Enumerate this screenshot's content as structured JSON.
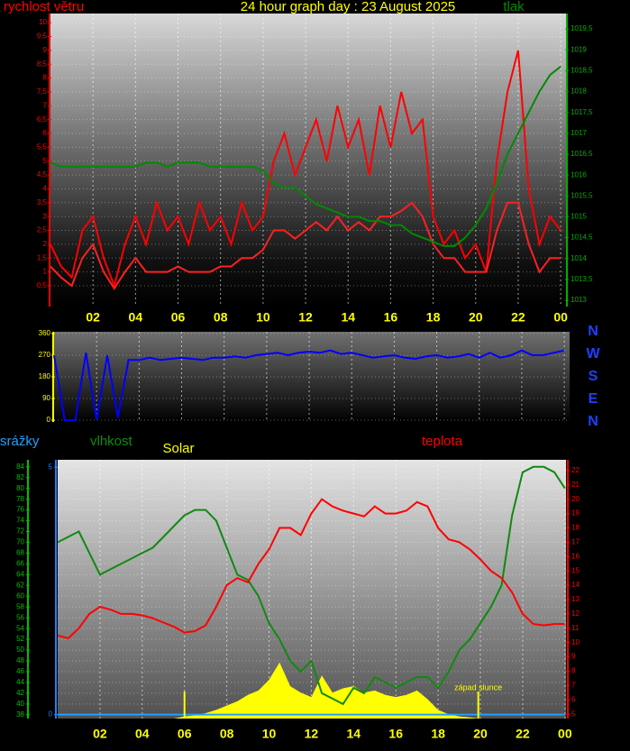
{
  "chart_data": [
    {
      "type": "line",
      "title": "24 hour graph day : 23 August 2025",
      "x": [
        0,
        0.5,
        1,
        1.5,
        2,
        2.5,
        3,
        3.5,
        4,
        4.5,
        5,
        5.5,
        6,
        6.5,
        7,
        7.5,
        8,
        8.5,
        9,
        9.5,
        10,
        10.5,
        11,
        11.5,
        12,
        12.5,
        13,
        13.5,
        14,
        14.5,
        15,
        15.5,
        16,
        16.5,
        17,
        17.5,
        18,
        18.5,
        19,
        19.5,
        20,
        20.5,
        21,
        21.5,
        22,
        22.5,
        23,
        23.5,
        24
      ],
      "xlim": [
        0,
        24.25
      ],
      "xticks": [
        {
          "value": 2,
          "label": "02"
        },
        {
          "value": 4,
          "label": "04"
        },
        {
          "value": 6,
          "label": "06"
        },
        {
          "value": 8,
          "label": "08"
        },
        10,
        12,
        14,
        16,
        18,
        20,
        22,
        {
          "value": 24,
          "label": "00"
        }
      ],
      "ylim": [
        -0.25,
        10.33
      ],
      "ycolor": "#ff0000",
      "yticks": [
        {
          "value": 0.5,
          "label": "0,5"
        },
        1,
        {
          "value": 1.5,
          "label": "1,5"
        },
        2,
        {
          "value": 2.5,
          "label": "2,5"
        },
        3,
        {
          "value": 3.5,
          "label": "3,5"
        },
        4,
        {
          "value": 4.5,
          "label": "4,5"
        },
        5,
        {
          "value": 5.5,
          "label": "5,5"
        },
        6,
        {
          "value": 6.5,
          "label": "6,5"
        },
        7,
        {
          "value": 7.5,
          "label": "7,5"
        },
        8,
        {
          "value": 8.5,
          "label": "8,5"
        },
        9,
        {
          "value": 9.5,
          "label": "9,5"
        },
        10
      ],
      "y2lim": [
        1012.85,
        1019.87
      ],
      "y2color": "#00b000",
      "y2ticks": [
        1013,
        {
          "value": 1013.5,
          "label": "1013,5"
        },
        1014,
        {
          "value": 1014.5,
          "label": "1014,5"
        },
        1015,
        {
          "value": 1015.5,
          "label": "1015,5"
        },
        1016,
        {
          "value": 1016.5,
          "label": "1016,5"
        },
        1017,
        {
          "value": 1017.5,
          "label": "1017,5"
        },
        1018,
        {
          "value": 1018.5,
          "label": "1018,5"
        },
        1019,
        {
          "value": 1019.5,
          "label": "1019,5"
        }
      ],
      "grid": true,
      "series": [
        {
          "name": "rychlost větru",
          "color": "#ff0000",
          "values": [
            2,
            1.2,
            0.8,
            2.5,
            3,
            1.5,
            0.5,
            2,
            3,
            2,
            3.5,
            2.5,
            3,
            2,
            3.5,
            2.5,
            3,
            2,
            3.5,
            2.5,
            3,
            5,
            6,
            4.5,
            5.5,
            6.5,
            5,
            7,
            5.5,
            6.5,
            4.5,
            7,
            5.5,
            7.5,
            6,
            6.5,
            3,
            2,
            2.5,
            1.5,
            2,
            1,
            5,
            7.5,
            9,
            4,
            2,
            3,
            2.5
          ]
        },
        {
          "color": "#ff2020",
          "values": [
            1.2,
            0.8,
            0.5,
            1.5,
            2,
            1,
            0.4,
            1,
            1.5,
            1,
            1,
            1,
            1.2,
            1,
            1,
            1,
            1.2,
            1.2,
            1.5,
            1.5,
            1.8,
            2.5,
            2.5,
            2.2,
            2.5,
            2.8,
            2.5,
            3,
            2.5,
            2.8,
            2.5,
            3,
            3,
            3.2,
            3.5,
            3,
            2,
            1.5,
            1.5,
            1,
            1,
            1,
            2.5,
            3.5,
            3.5,
            2,
            1,
            1.5,
            1.5
          ]
        },
        {
          "name": "tlak",
          "color": "#008a00",
          "axis": "y2",
          "values": [
            1016.3,
            1016.2,
            1016.2,
            1016.2,
            1016.2,
            1016.2,
            1016.2,
            1016.2,
            1016.2,
            1016.3,
            1016.3,
            1016.2,
            1016.3,
            1016.3,
            1016.3,
            1016.2,
            1016.2,
            1016.2,
            1016.2,
            1016.2,
            1016.1,
            1015.8,
            1015.7,
            1015.7,
            1015.5,
            1015.3,
            1015.2,
            1015.1,
            1015,
            1015,
            1014.9,
            1014.9,
            1014.8,
            1014.8,
            1014.6,
            1014.5,
            1014.4,
            1014.3,
            1014.3,
            1014.5,
            1014.8,
            1015.2,
            1015.8,
            1016.5,
            1017,
            1017.5,
            1018,
            1018.4,
            1018.6
          ]
        }
      ]
    },
    {
      "type": "line",
      "x": [
        0,
        0.5,
        1,
        1.5,
        2,
        2.5,
        3,
        3.5,
        4,
        4.5,
        5,
        5.5,
        6,
        6.5,
        7,
        7.5,
        8,
        8.5,
        9,
        9.5,
        10,
        10.5,
        11,
        11.5,
        12,
        12.5,
        13,
        13.5,
        14,
        14.5,
        15,
        15.5,
        16,
        16.5,
        17,
        17.5,
        18,
        18.5,
        19,
        19.5,
        20,
        20.5,
        21,
        21.5,
        22,
        22.5,
        23,
        23.5,
        24
      ],
      "xlim": [
        0,
        24.25
      ],
      "ylim": [
        -7.5,
        367.5
      ],
      "ycolor": "#ffff00",
      "yticks": [
        0,
        90,
        180,
        270,
        360
      ],
      "direction_labels": [
        "N",
        "W",
        "S",
        "E",
        "N"
      ],
      "grid": true,
      "series": [
        {
          "color": "#0000ff",
          "values": [
            270,
            0,
            0,
            280,
            0,
            270,
            10,
            250,
            250,
            260,
            250,
            255,
            260,
            255,
            250,
            260,
            260,
            265,
            260,
            270,
            275,
            280,
            270,
            280,
            285,
            280,
            290,
            275,
            280,
            270,
            260,
            265,
            270,
            260,
            255,
            265,
            270,
            260,
            265,
            275,
            260,
            280,
            260,
            270,
            290,
            270,
            270,
            280,
            290
          ]
        }
      ]
    },
    {
      "type": "line",
      "x": [
        0,
        0.5,
        1,
        1.5,
        2,
        2.5,
        3,
        3.5,
        4,
        4.5,
        5,
        5.5,
        6,
        6.5,
        7,
        7.5,
        8,
        8.5,
        9,
        9.5,
        10,
        10.5,
        11,
        11.5,
        12,
        12.5,
        13,
        13.5,
        14,
        14.5,
        15,
        15.5,
        16,
        16.5,
        17,
        17.5,
        18,
        18.5,
        19,
        19.5,
        20,
        20.5,
        21,
        21.5,
        22,
        22.5,
        23,
        23.5,
        24
      ],
      "xlim": [
        0,
        24.05
      ],
      "xticks": [
        {
          "value": 2,
          "label": "02"
        },
        {
          "value": 4,
          "label": "04"
        },
        {
          "value": 6,
          "label": "06"
        },
        {
          "value": 8,
          "label": "08"
        },
        10,
        12,
        14,
        16,
        18,
        20,
        22,
        {
          "value": 24,
          "label": "00"
        }
      ],
      "ylim": [
        37.3,
        85.3
      ],
      "ycolor": "#00c000",
      "yticks": [
        38,
        40,
        42,
        44,
        46,
        48,
        50,
        52,
        54,
        56,
        58,
        60,
        62,
        64,
        66,
        68,
        70,
        72,
        74,
        76,
        78,
        80,
        82,
        84
      ],
      "y2lim": [
        4.7,
        22.75
      ],
      "y2color": "#ff0000",
      "y2ticks": [
        5,
        6,
        7,
        8,
        9,
        10,
        11,
        12,
        13,
        14,
        15,
        16,
        17,
        18,
        19,
        20,
        21,
        22
      ],
      "y3lim": [
        0,
        1200
      ],
      "y4lim": [
        -0.08,
        5.15
      ],
      "y4color": "#2080ff",
      "y4ticks": [
        0,
        5
      ],
      "grid": true,
      "events": [
        {
          "x": 6
        },
        {
          "x": 19.9,
          "label": "západ slunce"
        }
      ],
      "series": [
        {
          "name": "Solar",
          "color": "#ffff00",
          "axis": "y3",
          "style": "area",
          "values": [
            0,
            0,
            0,
            0,
            0,
            0,
            0,
            0,
            0,
            0,
            0,
            0,
            10,
            15,
            25,
            40,
            60,
            80,
            110,
            130,
            180,
            260,
            150,
            120,
            100,
            200,
            120,
            140,
            150,
            120,
            130,
            110,
            100,
            110,
            130,
            90,
            40,
            20,
            10,
            5,
            0,
            0,
            0,
            0,
            0,
            0,
            0,
            0,
            0
          ]
        },
        {
          "name": "srážky",
          "color": "#20a0ff",
          "axis": "y4",
          "values": [
            0,
            0,
            0,
            0,
            0,
            0,
            0,
            0,
            0,
            0,
            0,
            0,
            0,
            0,
            0,
            0,
            0,
            0,
            0,
            0,
            0,
            0,
            0,
            0,
            0,
            0,
            0,
            0,
            0,
            0,
            0,
            0,
            0,
            0,
            0,
            0,
            0,
            0,
            0,
            0,
            0,
            0,
            0,
            0,
            0,
            0,
            0,
            0,
            0
          ]
        },
        {
          "name": "vlhkost",
          "color": "#108a10",
          "values": [
            70,
            71,
            72,
            68,
            64,
            65,
            66,
            67,
            68,
            69,
            71,
            73,
            75,
            76,
            76,
            74,
            69,
            64,
            63,
            60,
            55,
            52,
            48,
            46,
            48,
            42,
            41,
            40,
            43,
            42,
            45,
            44,
            43,
            44,
            45,
            45,
            43,
            46,
            50,
            52,
            55,
            58,
            62,
            75,
            83,
            84,
            84,
            83,
            80
          ]
        },
        {
          "name": "teplota",
          "color": "#ff0000",
          "axis": "y2",
          "values": [
            10.5,
            10.3,
            11,
            12,
            12.5,
            12.3,
            12,
            12,
            11.9,
            11.7,
            11.4,
            11.1,
            10.7,
            10.8,
            11.2,
            12.5,
            14,
            14.5,
            14.2,
            15.5,
            16.5,
            18,
            18,
            17.5,
            19,
            20,
            19.5,
            19.2,
            19,
            18.8,
            19.5,
            19,
            19,
            19.2,
            19.8,
            19.5,
            18,
            17.2,
            17,
            16.5,
            15.8,
            15,
            14.5,
            13.5,
            12,
            11.3,
            11.2,
            11.3,
            11.3
          ]
        }
      ]
    }
  ]
}
